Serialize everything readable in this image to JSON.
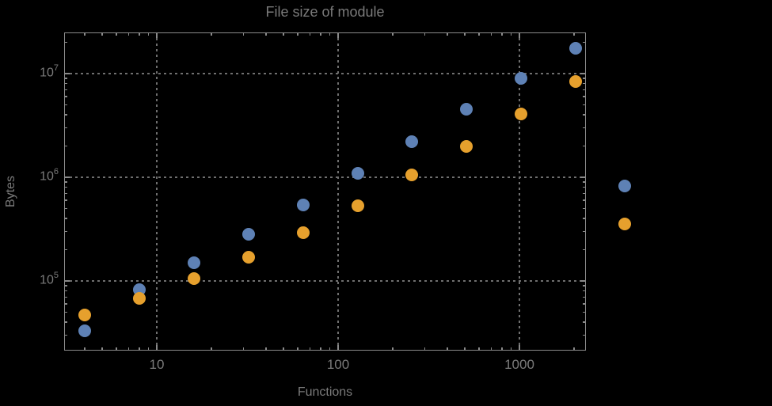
{
  "title": "File size of module",
  "axes": {
    "x": {
      "label": "Functions",
      "scale": "log",
      "tick_values": [
        10,
        100,
        1000
      ],
      "tick_labels": [
        "10",
        "100",
        "1000"
      ]
    },
    "y": {
      "label": "Bytes",
      "scale": "log",
      "tick_values": [
        100000,
        1000000,
        10000000
      ],
      "tick_base": "10",
      "tick_exponents": [
        "5",
        "6",
        "7"
      ]
    }
  },
  "chart_data": {
    "type": "scatter",
    "title": "File size of module",
    "xlabel": "Functions",
    "ylabel": "Bytes",
    "x_scale": "log",
    "y_scale": "log",
    "xlim": [
      3.1,
      2330
    ],
    "ylim": [
      21000,
      25000000
    ],
    "grid": "dotted lines at decade ticks",
    "x": [
      4,
      8,
      16,
      32,
      64,
      128,
      256,
      512,
      1024,
      2048,
      3800
    ],
    "series": [
      {
        "name": "blue",
        "color": "#5E81B5",
        "values": [
          33000,
          82000,
          150000,
          280000,
          540000,
          1100000,
          2200000,
          4500000,
          9000000,
          17500000,
          830000
        ]
      },
      {
        "name": "orange",
        "color": "#E6A02D",
        "values": [
          47000,
          68000,
          105000,
          170000,
          290000,
          530000,
          1050000,
          2000000,
          4100000,
          8400000,
          355000
        ]
      }
    ]
  },
  "colors": {
    "background": "#000000",
    "frame": "#8a8a8a",
    "grid": "#6f6f6f",
    "text": "#7a7a7a",
    "series_blue": "#5E81B5",
    "series_orange": "#E6A02D"
  }
}
